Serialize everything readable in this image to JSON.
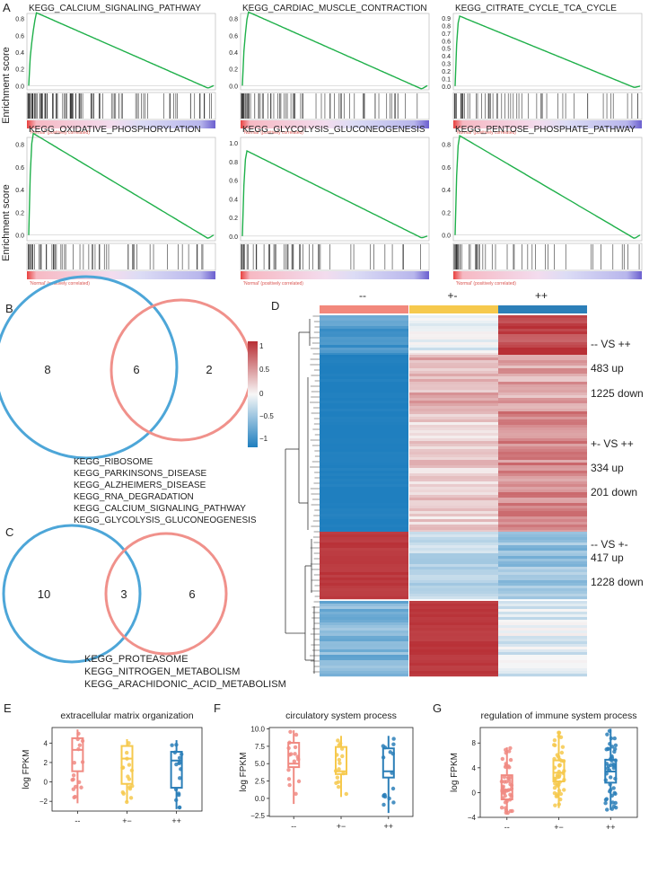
{
  "panel_labels": {
    "A": "A",
    "B": "B",
    "C": "C",
    "D": "D",
    "E": "E",
    "F": "F",
    "G": "G"
  },
  "colors": {
    "green": "#1fb04a",
    "red_bar": "#ec6f6f",
    "blue_bar": "#6b5fcf",
    "venn_blue": "#4da6d8",
    "venn_red": "#f0918b",
    "box_a": "#f08a82",
    "box_b": "#f6c94d",
    "box_c": "#2c7fb8",
    "hm_blue": "#1f7fbf",
    "hm_red": "#b82f35"
  },
  "gsea": {
    "ylabel": "Enrichment score",
    "phenotype_label": "'Normal' (positively correlated)",
    "panels": [
      {
        "title": "KEGG_CALCIUM_SIGNALING_PATHWAY",
        "yticks": [
          "0.8",
          "0.6",
          "0.4",
          "0.2",
          "0.0"
        ],
        "ymax": 0.87,
        "ymin": -0.03,
        "peak_frac": 0.04,
        "hit_density": 0.9
      },
      {
        "title": "KEGG_CARDIAC_MUSCLE_CONTRACTION",
        "yticks": [
          "0.8",
          "0.6",
          "0.4",
          "0.2",
          "0.0"
        ],
        "ymax": 0.88,
        "ymin": -0.04,
        "peak_frac": 0.03,
        "hit_density": 0.6
      },
      {
        "title": "KEGG_CITRATE_CYCLE_TCA_CYCLE",
        "yticks": [
          "0.9",
          "0.8",
          "0.7",
          "0.6",
          "0.5",
          "0.4",
          "0.3",
          "0.2",
          "0.1",
          "0.0"
        ],
        "ymax": 0.93,
        "ymin": -0.02,
        "peak_frac": 0.02,
        "hit_density": 0.35
      },
      {
        "title": "KEGG_OXIDATIVE_PHOSPHORYLATION",
        "yticks": [
          "0.8",
          "0.6",
          "0.4",
          "0.2",
          "0.0"
        ],
        "ymax": 0.9,
        "ymin": -0.03,
        "peak_frac": 0.02,
        "hit_density": 0.4
      },
      {
        "title": "KEGG_GLYCOLYSIS_GLUCONEOGENESIS",
        "yticks": [
          "1.0",
          "0.8",
          "0.6",
          "0.4",
          "0.2",
          "0.0"
        ],
        "ymax": 0.92,
        "ymin": -0.02,
        "peak_frac": 0.02,
        "hit_density": 0.3
      },
      {
        "title": "KEGG_PENTOSE_PHOSPHATE_PATHWAY",
        "yticks": [
          "0.8",
          "0.6",
          "0.4",
          "0.2",
          "0.0"
        ],
        "ymax": 0.88,
        "ymin": -0.03,
        "peak_frac": 0.02,
        "hit_density": 0.3
      }
    ]
  },
  "venn_b": {
    "left": "8",
    "center": "6",
    "right": "2",
    "items": [
      "KEGG_RIBOSOME",
      "KEGG_PARKINSONS_DISEASE",
      "KEGG_ALZHEIMERS_DISEASE",
      "KEGG_RNA_DEGRADATION",
      "KEGG_CALCIUM_SIGNALING_PATHWAY",
      "KEGG_GLYCOLYSIS_GLUCONEOGENESIS"
    ]
  },
  "venn_c": {
    "left": "10",
    "center": "3",
    "right": "6",
    "items": [
      "KEGG_PROTEASOME",
      "KEGG_NITROGEN_METABOLISM",
      "KEGG_ARACHIDONIC_ACID_METABOLISM"
    ]
  },
  "heatmap": {
    "groups": [
      "--",
      "+-",
      "++"
    ],
    "legend_ticks": [
      "1",
      "0.5",
      "0",
      "−0.5",
      "−1"
    ],
    "comparisons": [
      {
        "title": "--  VS  ++",
        "up": "483 up",
        "down": "1225 down"
      },
      {
        "title": "+-  VS  ++",
        "up": "334 up",
        "down": "201 down"
      },
      {
        "title": "--  VS  +-",
        "up": "417 up",
        "down": "1228 down"
      }
    ]
  },
  "chart_data": [
    {
      "type": "box",
      "title": "extracellular matrix organization",
      "ylabel": "log FPKM",
      "categories": [
        "--",
        "+−",
        "++"
      ],
      "yticks": [
        "4",
        "2",
        "0",
        "−2"
      ],
      "ylim": [
        -3,
        5.6
      ],
      "boxes": [
        {
          "min": -2.2,
          "q1": 1.1,
          "median": 3.3,
          "q3": 4.5,
          "max": 5.4
        },
        {
          "min": -2.1,
          "q1": -0.2,
          "median": 2.4,
          "q3": 3.7,
          "max": 4.4
        },
        {
          "min": -2.8,
          "q1": -0.6,
          "median": 2.2,
          "q3": 3.1,
          "max": 4.3
        }
      ]
    },
    {
      "type": "box",
      "title": "circulatory system process",
      "ylabel": "log FPKM",
      "categories": [
        "--",
        "+−",
        "++"
      ],
      "yticks": [
        "10.0",
        "7.5",
        "5.0",
        "2.5",
        "0.0",
        "−2.5"
      ],
      "ylim": [
        -2.6,
        10.2
      ],
      "boxes": [
        {
          "min": -0.8,
          "q1": 4.5,
          "median": 5.0,
          "q3": 8.0,
          "max": 9.8
        },
        {
          "min": 0.2,
          "q1": 3.5,
          "median": 3.9,
          "q3": 7.4,
          "max": 9.0
        },
        {
          "min": -2.1,
          "q1": 3.0,
          "median": 3.9,
          "q3": 7.2,
          "max": 9.0
        }
      ]
    },
    {
      "type": "box",
      "title": "regulation of immune system process",
      "ylabel": "log FPKM",
      "categories": [
        "--",
        "+−",
        "++"
      ],
      "yticks": [
        "8",
        "4",
        "0",
        "−4"
      ],
      "ylim": [
        -4,
        10.5
      ],
      "boxes": [
        {
          "min": -3.3,
          "q1": -1.1,
          "median": 0.4,
          "q3": 2.8,
          "max": 7.3
        },
        {
          "min": -2.5,
          "q1": 1.8,
          "median": 3.2,
          "q3": 5.2,
          "max": 9.8
        },
        {
          "min": -2.8,
          "q1": 1.6,
          "median": 3.4,
          "q3": 5.3,
          "max": 10.3
        }
      ]
    }
  ]
}
